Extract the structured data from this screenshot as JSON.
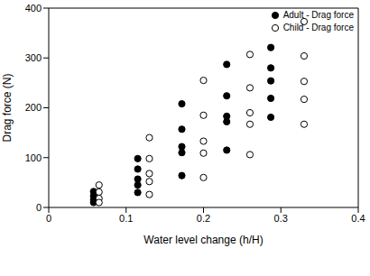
{
  "chart_data": {
    "type": "scatter",
    "x_label": "Water level change (h/H)",
    "y_label": "Drag force (N)",
    "xlim": [
      0,
      0.4
    ],
    "xticks": [
      0,
      0.1,
      0.2,
      0.3,
      0.4
    ],
    "ylim": [
      0,
      400
    ],
    "yticks": [
      0,
      100,
      200,
      300,
      400
    ],
    "grid": false,
    "legend": "upper right",
    "series": [
      {
        "name": "Adult - Drag force",
        "color": "#000000",
        "marker": "circle",
        "x": [
          0.058,
          0.058,
          0.058,
          0.058,
          0.115,
          0.115,
          0.115,
          0.115,
          0.115,
          0.172,
          0.172,
          0.172,
          0.172,
          0.172,
          0.23,
          0.23,
          0.23,
          0.23,
          0.23,
          0.287,
          0.287,
          0.287,
          0.287,
          0.287
        ],
        "values": [
          32,
          23,
          15,
          10,
          98,
          77,
          57,
          45,
          30,
          208,
          157,
          122,
          110,
          64,
          287,
          224,
          183,
          172,
          115,
          321,
          280,
          254,
          219,
          181
        ]
      },
      {
        "name": "Child - Drag force",
        "color": "#000000",
        "marker": "open_circle",
        "x": [
          0.065,
          0.065,
          0.065,
          0.065,
          0.13,
          0.13,
          0.13,
          0.13,
          0.13,
          0.2,
          0.2,
          0.2,
          0.2,
          0.2,
          0.26,
          0.26,
          0.26,
          0.26,
          0.26,
          0.33,
          0.33,
          0.33,
          0.33,
          0.33
        ],
        "values": [
          45,
          31,
          18,
          10,
          140,
          98,
          68,
          52,
          26,
          255,
          185,
          133,
          109,
          60,
          307,
          240,
          190,
          167,
          106,
          373,
          304,
          253,
          217,
          167
        ]
      }
    ]
  }
}
